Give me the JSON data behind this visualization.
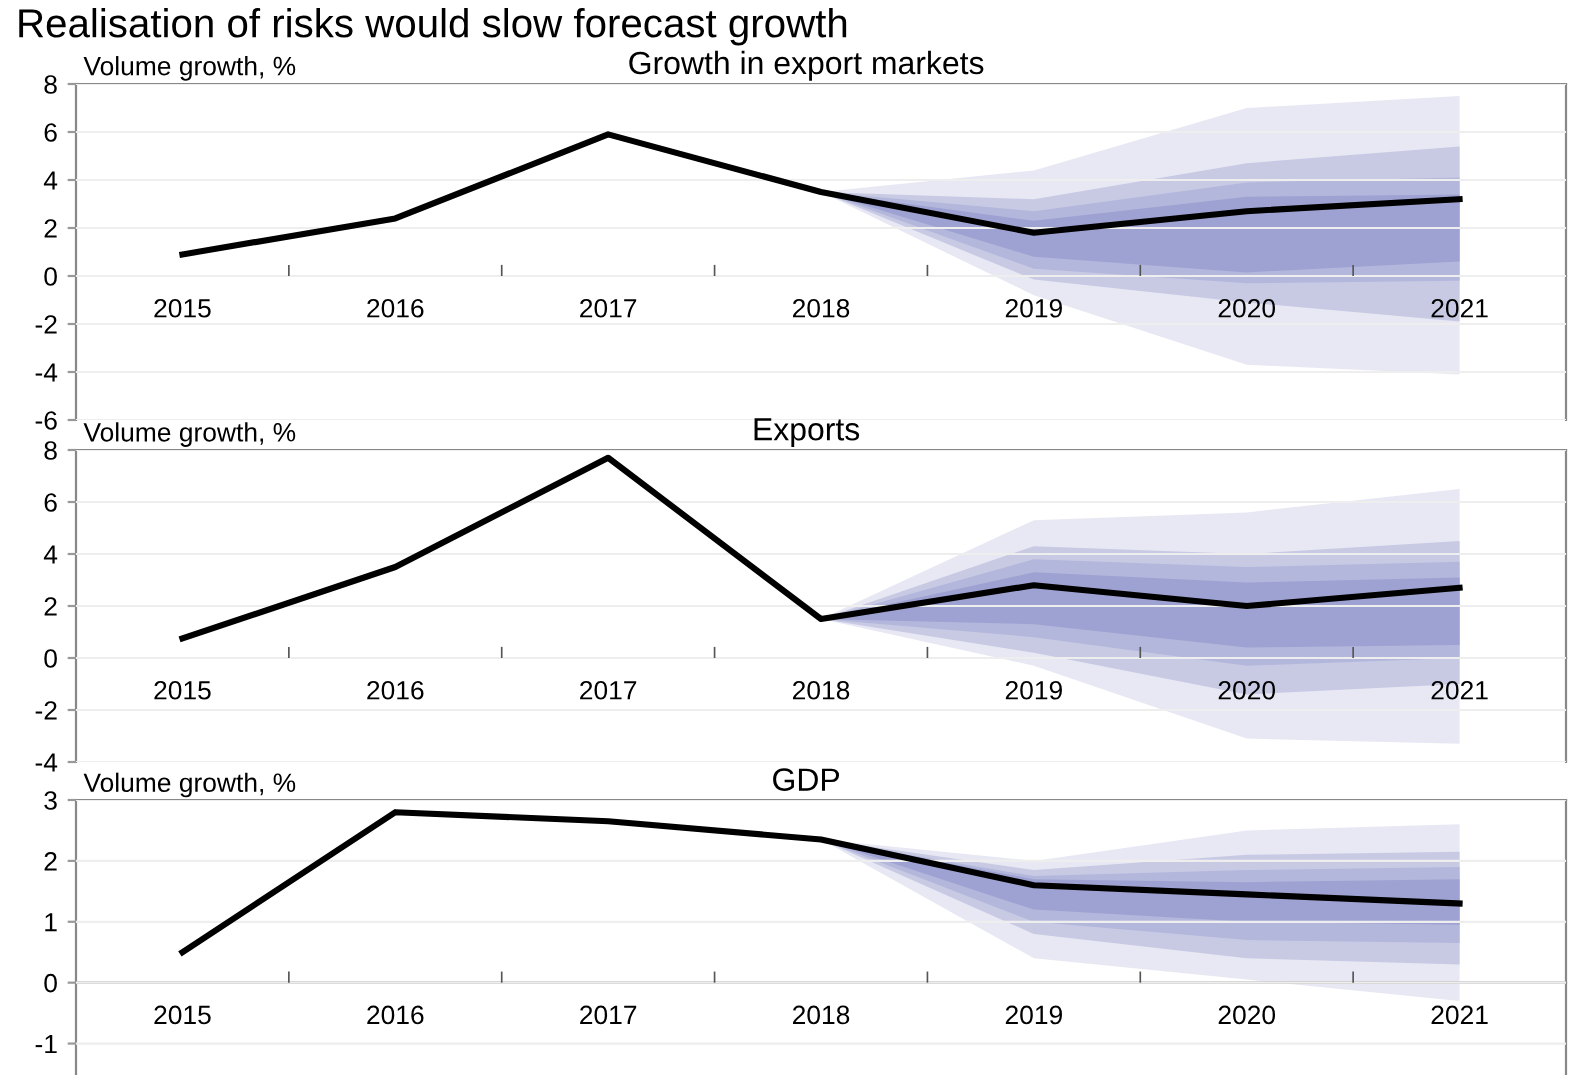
{
  "chart_data": [
    {
      "type": "line",
      "title": "Realisation of risks would slow forecast growth",
      "subtitle": "Growth in export markets",
      "ylabel": "Volume growth, %",
      "categories": [
        "2015",
        "2016",
        "2017",
        "2018",
        "2019",
        "2020",
        "2021"
      ],
      "ylim": [
        -6,
        8
      ],
      "yticks": [
        -6,
        -4,
        -2,
        0,
        2,
        4,
        6,
        8
      ],
      "grid": "y",
      "series": [
        {
          "type": "area",
          "color": "#e8e8f4",
          "values": [
            null,
            null,
            null,
            null,
            null,
            null,
            null
          ],
          "lower": [
            null,
            null,
            null,
            3.5,
            -0.8,
            -3.7,
            -4.1
          ],
          "upper": [
            null,
            null,
            null,
            3.5,
            4.4,
            7.0,
            7.5
          ]
        },
        {
          "type": "area",
          "color": "#c8cae4",
          "values": [
            null,
            null,
            null,
            null,
            null,
            null,
            null
          ],
          "lower": [
            null,
            null,
            null,
            3.5,
            -0.15,
            -1.1,
            -1.9
          ],
          "upper": [
            null,
            null,
            null,
            3.5,
            3.2,
            4.7,
            5.4
          ]
        },
        {
          "type": "area",
          "color": "#b4b7dc",
          "values": [
            null,
            null,
            null,
            null,
            null,
            null,
            null
          ],
          "lower": [
            null,
            null,
            null,
            3.5,
            0.3,
            -0.3,
            -0.2
          ],
          "upper": [
            null,
            null,
            null,
            3.5,
            2.7,
            3.9,
            4.1
          ]
        },
        {
          "type": "area",
          "color": "#9ea2d2",
          "values": [
            null,
            null,
            null,
            null,
            null,
            null,
            null
          ],
          "lower": [
            null,
            null,
            null,
            3.5,
            0.8,
            0.15,
            0.6
          ],
          "upper": [
            null,
            null,
            null,
            3.5,
            2.3,
            3.3,
            3.4
          ]
        },
        {
          "color": "#000000",
          "values": [
            0.9,
            2.4,
            5.9,
            3.5,
            1.8,
            2.7,
            3.2
          ]
        }
      ]
    },
    {
      "type": "line",
      "subtitle": "Exports",
      "ylabel": "Volume growth, %",
      "categories": [
        "2015",
        "2016",
        "2017",
        "2018",
        "2019",
        "2020",
        "2021"
      ],
      "ylim": [
        -4,
        8
      ],
      "yticks": [
        -4,
        -2,
        0,
        2,
        4,
        6,
        8
      ],
      "grid": "y",
      "series": [
        {
          "type": "area",
          "color": "#e8e8f4",
          "values": [
            null,
            null,
            null,
            null,
            null,
            null,
            null
          ],
          "lower": [
            null,
            null,
            null,
            1.5,
            -0.3,
            -3.1,
            -3.3
          ],
          "upper": [
            null,
            null,
            null,
            1.5,
            5.3,
            5.6,
            6.5
          ]
        },
        {
          "type": "area",
          "color": "#c8cae4",
          "values": [
            null,
            null,
            null,
            null,
            null,
            null,
            null
          ],
          "lower": [
            null,
            null,
            null,
            1.5,
            0.2,
            -1.4,
            -1.0
          ],
          "upper": [
            null,
            null,
            null,
            1.5,
            4.3,
            4.0,
            4.5
          ]
        },
        {
          "type": "area",
          "color": "#b4b7dc",
          "values": [
            null,
            null,
            null,
            null,
            null,
            null,
            null
          ],
          "lower": [
            null,
            null,
            null,
            1.5,
            0.8,
            -0.3,
            0.0
          ],
          "upper": [
            null,
            null,
            null,
            1.5,
            3.8,
            3.5,
            3.7
          ]
        },
        {
          "type": "area",
          "color": "#9ea2d2",
          "values": [
            null,
            null,
            null,
            null,
            null,
            null,
            null
          ],
          "lower": [
            null,
            null,
            null,
            1.5,
            1.3,
            0.4,
            0.5
          ],
          "upper": [
            null,
            null,
            null,
            1.5,
            3.3,
            2.9,
            3.1
          ]
        },
        {
          "color": "#000000",
          "values": [
            0.75,
            3.5,
            7.7,
            1.5,
            2.8,
            2.0,
            2.7
          ]
        }
      ]
    },
    {
      "type": "line",
      "subtitle": "GDP",
      "ylabel": "Volume growth, %",
      "categories": [
        "2015",
        "2016",
        "2017",
        "2018",
        "2019",
        "2020",
        "2021"
      ],
      "ylim": [
        -1.5,
        3
      ],
      "yticks": [
        -1,
        0,
        1,
        2,
        3
      ],
      "grid": "y",
      "series": [
        {
          "type": "area",
          "color": "#e8e8f4",
          "values": [
            null,
            null,
            null,
            null,
            null,
            null,
            null
          ],
          "lower": [
            null,
            null,
            null,
            2.35,
            0.4,
            0.05,
            -0.3
          ],
          "upper": [
            null,
            null,
            null,
            2.35,
            2.0,
            2.5,
            2.6
          ]
        },
        {
          "type": "area",
          "color": "#c8cae4",
          "values": [
            null,
            null,
            null,
            null,
            null,
            null,
            null
          ],
          "lower": [
            null,
            null,
            null,
            2.35,
            0.8,
            0.4,
            0.3
          ],
          "upper": [
            null,
            null,
            null,
            2.35,
            1.85,
            2.1,
            2.15
          ]
        },
        {
          "type": "area",
          "color": "#b4b7dc",
          "values": [
            null,
            null,
            null,
            null,
            null,
            null,
            null
          ],
          "lower": [
            null,
            null,
            null,
            2.35,
            1.0,
            0.7,
            0.65
          ],
          "upper": [
            null,
            null,
            null,
            2.35,
            1.75,
            1.85,
            1.9
          ]
        },
        {
          "type": "area",
          "color": "#9ea2d2",
          "values": [
            null,
            null,
            null,
            null,
            null,
            null,
            null
          ],
          "lower": [
            null,
            null,
            null,
            2.35,
            1.2,
            1.0,
            0.95
          ],
          "upper": [
            null,
            null,
            null,
            2.35,
            1.7,
            1.65,
            1.7
          ]
        },
        {
          "color": "#000000",
          "values": [
            0.5,
            2.8,
            2.65,
            2.35,
            1.6,
            1.45,
            1.3
          ]
        }
      ]
    }
  ]
}
